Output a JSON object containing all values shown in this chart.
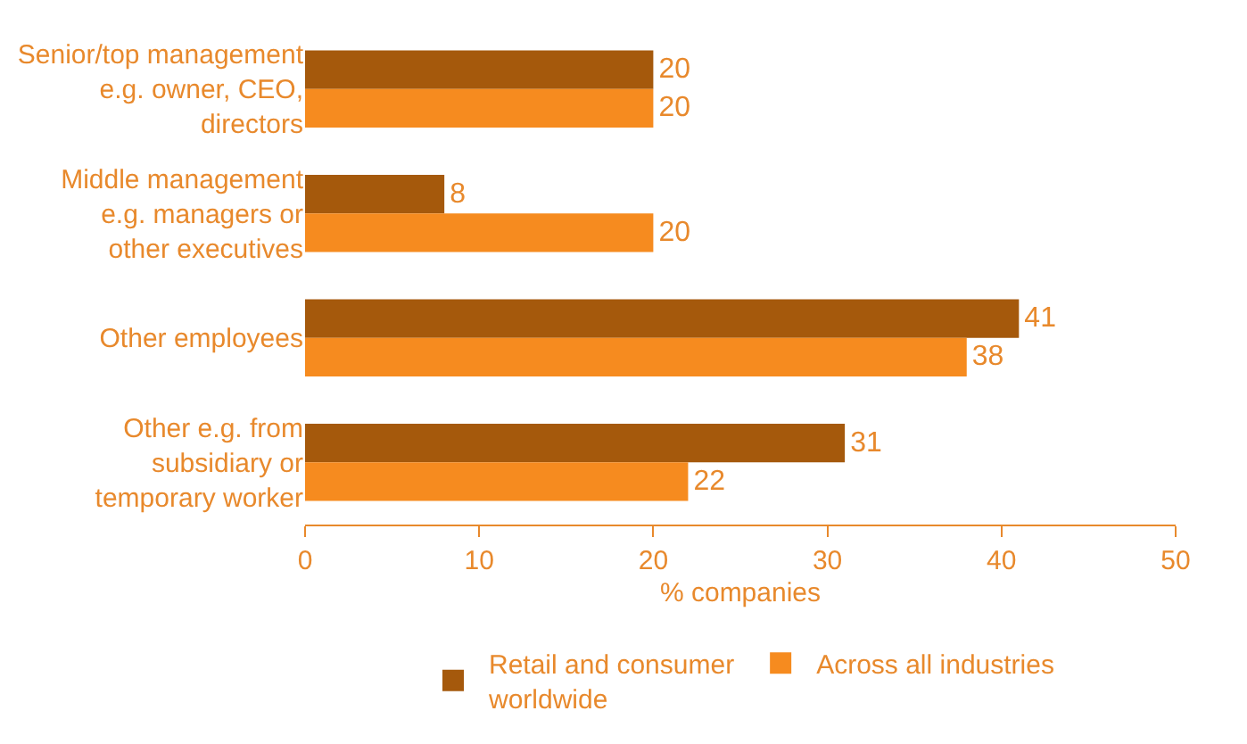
{
  "chart_data": {
    "type": "bar",
    "orientation": "horizontal",
    "xlabel": "% companies",
    "categories": [
      "Senior/top management e.g. owner, CEO, directors",
      "Middle management e.g. managers or other executives",
      "Other employees",
      "Other e.g. from subsidiary or temporary worker"
    ],
    "series": [
      {
        "name": "Retail and consumer worldwide",
        "color": "#a5590c",
        "values": [
          20,
          8,
          41,
          31
        ]
      },
      {
        "name": "Across all industries",
        "color": "#f68b1f",
        "values": [
          20,
          20,
          38,
          22
        ]
      }
    ],
    "xlim": [
      0,
      50
    ],
    "xticks": [
      0,
      10,
      20,
      30,
      40,
      50
    ],
    "data_labels": true,
    "legend": "bottom"
  }
}
